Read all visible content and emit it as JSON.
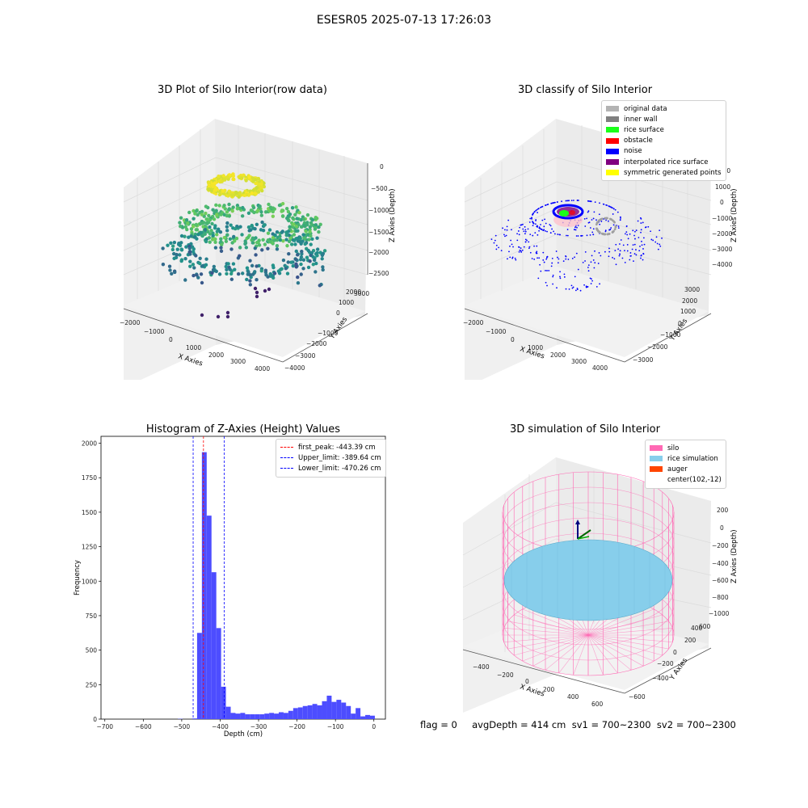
{
  "suptitle": "ESESR05 2025-07-13 17:26:03",
  "panel1": {
    "title": "3D Plot of Silo Interior(row data)",
    "xlabel": "X Axies",
    "ylabel": "Y Axies",
    "zlabel": "Z Axies (Depth)",
    "xticks": [
      "−2000",
      "−1000",
      "0",
      "1000",
      "2000",
      "3000",
      "4000"
    ],
    "yticks": [
      "−4000",
      "−3000",
      "−2000",
      "−1000",
      "0",
      "1000",
      "2000",
      "3000"
    ],
    "zticks": [
      "0",
      "−500",
      "−1000",
      "−1500",
      "−2000",
      "−2500"
    ]
  },
  "panel2": {
    "title": "3D classify of Silo Interior",
    "xlabel": "X Axies",
    "ylabel": "Y Axies",
    "zlabel": "Z Axies (Depth)",
    "xticks": [
      "−2000",
      "−1000",
      "0",
      "1000",
      "2000",
      "3000",
      "4000"
    ],
    "yticks": [
      "−3000",
      "−2000",
      "−1000",
      "0",
      "1000",
      "2000",
      "3000"
    ],
    "zticks": [
      "2000",
      "1000",
      "0",
      "−1000",
      "−2000",
      "−3000",
      "−4000"
    ],
    "legend": [
      {
        "label": "original data",
        "color": "#b3b3b3"
      },
      {
        "label": "inner wall",
        "color": "#808080"
      },
      {
        "label": "rice surface",
        "color": "#1aff1a"
      },
      {
        "label": "obstacle",
        "color": "#ff0000"
      },
      {
        "label": "noise",
        "color": "#0000ff"
      },
      {
        "label": "interpolated rice surface",
        "color": "#800080"
      },
      {
        "label": "symmetric generated points",
        "color": "#ffff00"
      }
    ]
  },
  "panel3": {
    "title": "Histogram of Z-Axies (Height) Values",
    "legend": [
      {
        "label": "first_peak: -443.39 cm",
        "color": "#ff0000"
      },
      {
        "label": "Upper_limit: -389.64 cm",
        "color": "#0000ff"
      },
      {
        "label": "Lower_limit: -470.26 cm",
        "color": "#0000ff"
      }
    ]
  },
  "panel4": {
    "title": "3D simulation of Silo Interior",
    "xlabel": "X Axies",
    "ylabel": "Y Axies",
    "zlabel": "Z Axies (Depth)",
    "xticks": [
      "−400",
      "−200",
      "0",
      "200",
      "400",
      "600"
    ],
    "yticks": [
      "−600",
      "−400",
      "−200",
      "0",
      "200",
      "400",
      "600"
    ],
    "zticks": [
      "200",
      "0",
      "−200",
      "−400",
      "−600",
      "−800",
      "−1000"
    ],
    "legend": [
      {
        "label": "silo",
        "color": "#ff69b4"
      },
      {
        "label": "rice simulation",
        "color": "#87ceeb"
      },
      {
        "label": "auger",
        "color": "#ff4500"
      },
      {
        "label": "center(102,-12)",
        "color": ""
      }
    ]
  },
  "status": "flag = 0     avgDepth = 414 cm  sv1 = 700~2300  sv2 = 700~2300",
  "chart_data": {
    "type": "bar",
    "title": "Histogram of Z-Axies (Height) Values",
    "xlabel": "Depth (cm)",
    "ylabel": "Frequency",
    "xlim": [
      -710,
      30
    ],
    "ylim": [
      0,
      2050
    ],
    "xticks": [
      -700,
      -600,
      -500,
      -400,
      -300,
      -200,
      -100,
      0
    ],
    "yticks": [
      0,
      250,
      500,
      750,
      1000,
      1250,
      1500,
      1750,
      2000
    ],
    "bin_width": 12.5,
    "bins": [
      {
        "x0": -510,
        "v": 2
      },
      {
        "x0": -497.5,
        "v": 0
      },
      {
        "x0": -485,
        "v": 0
      },
      {
        "x0": -472.5,
        "v": 5
      },
      {
        "x0": -460,
        "v": 625
      },
      {
        "x0": -447.5,
        "v": 1935
      },
      {
        "x0": -435,
        "v": 1475
      },
      {
        "x0": -422.5,
        "v": 1065
      },
      {
        "x0": -410,
        "v": 660
      },
      {
        "x0": -397.5,
        "v": 235
      },
      {
        "x0": -385,
        "v": 90
      },
      {
        "x0": -372.5,
        "v": 45
      },
      {
        "x0": -360,
        "v": 40
      },
      {
        "x0": -347.5,
        "v": 45
      },
      {
        "x0": -335,
        "v": 35
      },
      {
        "x0": -322.5,
        "v": 35
      },
      {
        "x0": -310,
        "v": 35
      },
      {
        "x0": -297.5,
        "v": 35
      },
      {
        "x0": -285,
        "v": 40
      },
      {
        "x0": -272.5,
        "v": 45
      },
      {
        "x0": -260,
        "v": 40
      },
      {
        "x0": -247.5,
        "v": 50
      },
      {
        "x0": -235,
        "v": 45
      },
      {
        "x0": -222.5,
        "v": 60
      },
      {
        "x0": -210,
        "v": 80
      },
      {
        "x0": -197.5,
        "v": 85
      },
      {
        "x0": -185,
        "v": 95
      },
      {
        "x0": -172.5,
        "v": 100
      },
      {
        "x0": -160,
        "v": 110
      },
      {
        "x0": -147.5,
        "v": 100
      },
      {
        "x0": -135,
        "v": 130
      },
      {
        "x0": -122.5,
        "v": 170
      },
      {
        "x0": -110,
        "v": 125
      },
      {
        "x0": -97.5,
        "v": 140
      },
      {
        "x0": -85,
        "v": 120
      },
      {
        "x0": -72.5,
        "v": 95
      },
      {
        "x0": -60,
        "v": 40
      },
      {
        "x0": -47.5,
        "v": 80
      },
      {
        "x0": -35,
        "v": 20
      },
      {
        "x0": -22.5,
        "v": 30
      },
      {
        "x0": -10,
        "v": 25
      }
    ],
    "vlines": [
      {
        "x": -443.39,
        "color": "#ff0000",
        "name": "first_peak: -443.39 cm"
      },
      {
        "x": -389.64,
        "color": "#0000ff",
        "name": "Upper_limit: -389.64 cm"
      },
      {
        "x": -470.26,
        "color": "#0000ff",
        "name": "Lower_limit: -470.26 cm"
      }
    ],
    "bar_color": "#4d4dff"
  }
}
